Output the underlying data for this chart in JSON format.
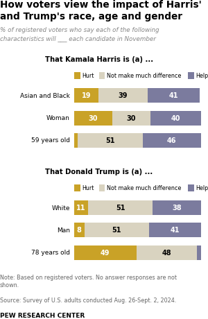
{
  "title": "How voters view the impact of Harris'\nand Trump's race, age and gender",
  "subtitle": "% of registered voters who say each of the following\ncharacteristics will ___ each candidate in November",
  "harris_section_title": "That Kamala Harris is (a) ...",
  "trump_section_title": "That Donald Trump is (a) ...",
  "harris_categories": [
    "Asian and Black",
    "Woman",
    "59 years old"
  ],
  "trump_categories": [
    "White",
    "Man",
    "78 years old"
  ],
  "harris_data": [
    [
      19,
      39,
      41
    ],
    [
      30,
      30,
      40
    ],
    [
      3,
      51,
      46
    ]
  ],
  "trump_data": [
    [
      11,
      51,
      38
    ],
    [
      8,
      51,
      41
    ],
    [
      49,
      48,
      3
    ]
  ],
  "color_hurt": "#C9A227",
  "color_neutral": "#D9D3C0",
  "color_help": "#7B7B9E",
  "legend_labels": [
    "Hurt",
    "Not make much difference",
    "Help"
  ],
  "note": "Note: Based on registered voters. No answer responses are not\nshown.",
  "source": "Source: Survey of U.S. adults conducted Aug. 26-Sept. 2, 2024.",
  "footer": "PEW RESEARCH CENTER",
  "bar_text_colors": [
    "white",
    "black",
    "white"
  ]
}
